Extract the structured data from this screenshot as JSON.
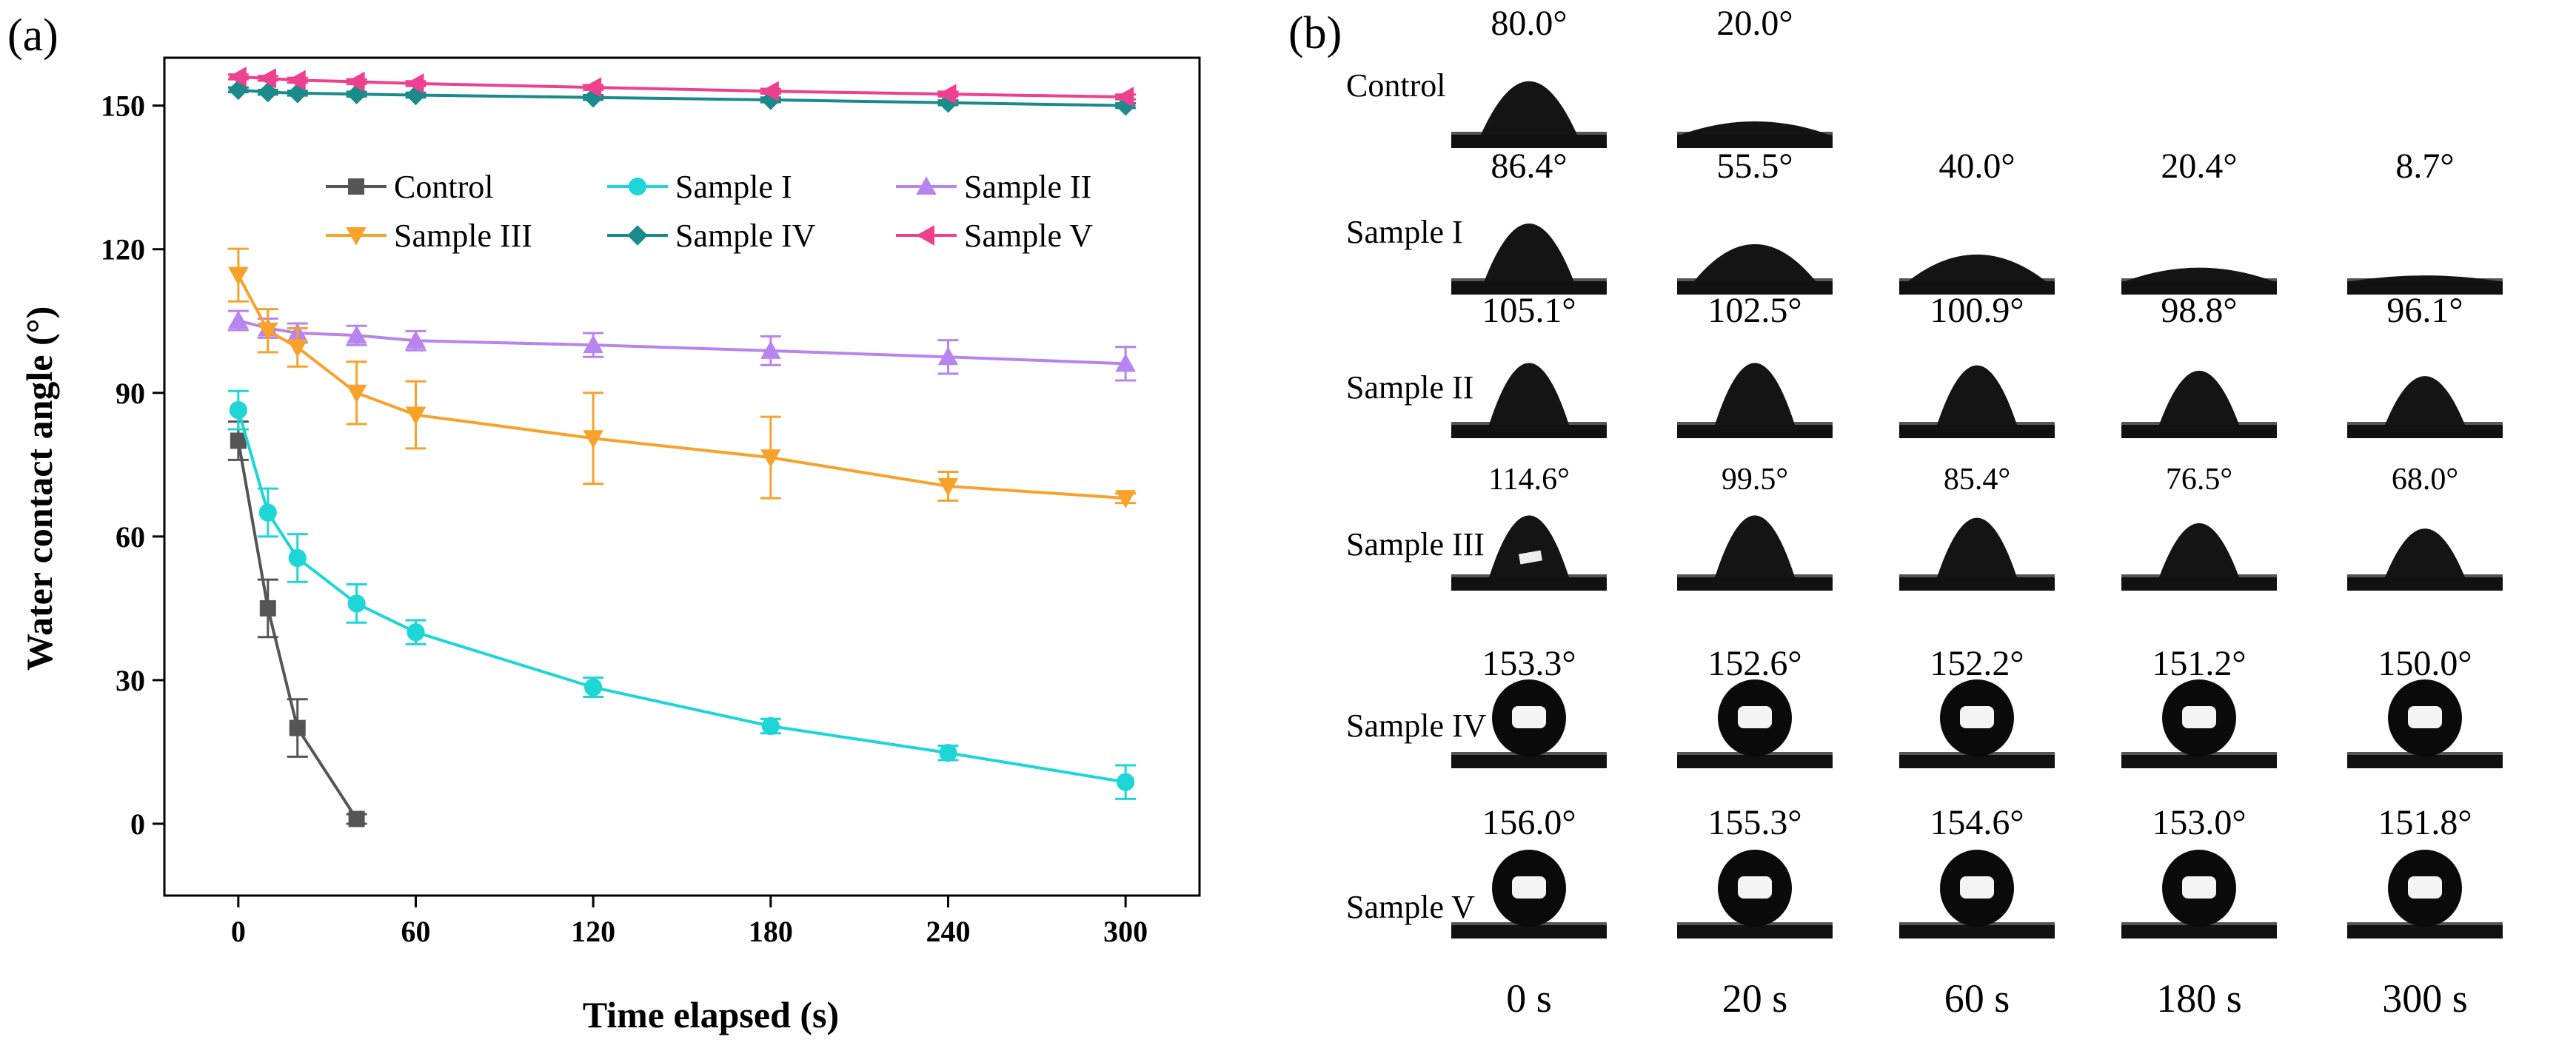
{
  "chart_data": {
    "type": "line",
    "panel_label": "(a)",
    "xlabel": "Time elapsed (s)",
    "ylabel": "Water contact angle (°)",
    "xlim": [
      -25,
      325
    ],
    "ylim": [
      -15,
      160
    ],
    "xticks": [
      0,
      60,
      120,
      180,
      240,
      300
    ],
    "yticks": [
      0,
      30,
      60,
      90,
      120,
      150
    ],
    "legend_position": "upper-right",
    "series": [
      {
        "name": "Control",
        "color": "#555555",
        "marker": "square",
        "x": [
          0,
          10,
          20,
          40
        ],
        "y": [
          80,
          45,
          20,
          1
        ],
        "err": [
          4,
          6,
          6,
          1
        ]
      },
      {
        "name": "Sample I",
        "color": "#1ed6d6",
        "marker": "circle",
        "x": [
          0,
          10,
          20,
          40,
          60,
          120,
          180,
          240,
          300
        ],
        "y": [
          86.4,
          65,
          55.5,
          46,
          40,
          28.5,
          20.4,
          14.8,
          8.7
        ],
        "err": [
          4,
          5,
          5,
          4,
          2.5,
          2,
          1.5,
          1.5,
          3.5
        ]
      },
      {
        "name": "Sample II",
        "color": "#b784f0",
        "marker": "triangle-up",
        "x": [
          0,
          10,
          20,
          40,
          60,
          120,
          180,
          240,
          300
        ],
        "y": [
          105.1,
          103.5,
          102.5,
          102,
          100.9,
          100,
          98.8,
          97.5,
          96.1
        ],
        "err": [
          2,
          2,
          2,
          2,
          2,
          2.5,
          3,
          3.5,
          3.5
        ]
      },
      {
        "name": "Sample III",
        "color": "#f7a22b",
        "marker": "triangle-down",
        "x": [
          0,
          10,
          20,
          40,
          60,
          120,
          180,
          240,
          300
        ],
        "y": [
          114.6,
          103,
          99.5,
          90,
          85.4,
          80.5,
          76.5,
          70.5,
          68
        ],
        "err": [
          5.5,
          4.5,
          4,
          6.5,
          7,
          9.5,
          8.5,
          3,
          1
        ]
      },
      {
        "name": "Sample IV",
        "color": "#1a8a8a",
        "marker": "diamond",
        "x": [
          0,
          10,
          20,
          40,
          60,
          120,
          180,
          240,
          300
        ],
        "y": [
          153.3,
          152.8,
          152.6,
          152.4,
          152.2,
          151.7,
          151.2,
          150.6,
          150
        ],
        "err": [
          0.5,
          0.5,
          0.5,
          0.5,
          0.5,
          0.5,
          0.5,
          0.5,
          0.5
        ]
      },
      {
        "name": "Sample V",
        "color": "#ef3f8f",
        "marker": "triangle-left",
        "x": [
          0,
          10,
          20,
          40,
          60,
          120,
          180,
          240,
          300
        ],
        "y": [
          156,
          155.7,
          155.3,
          155,
          154.6,
          153.8,
          153,
          152.4,
          151.8
        ],
        "err": [
          0.5,
          0.5,
          0.5,
          0.5,
          0.5,
          0.5,
          0.5,
          0.5,
          0.5
        ]
      }
    ]
  },
  "panel_b": {
    "panel_label": "(b)",
    "rows": [
      {
        "label": "Control",
        "type": "hydrophilic",
        "angles": [
          "80.0°",
          "20.0°"
        ]
      },
      {
        "label": "Sample I",
        "type": "hydrophilic",
        "angles": [
          "86.4°",
          "55.5°",
          "40.0°",
          "20.4°",
          "8.7°"
        ]
      },
      {
        "label": "Sample II",
        "type": "hydrophobic",
        "angles": [
          "105.1°",
          "102.5°",
          "100.9°",
          "98.8°",
          "96.1°"
        ]
      },
      {
        "label": "Sample III",
        "type": "hydrophobic",
        "angles": [
          "114.6°",
          "99.5°",
          "85.4°",
          "76.5°",
          "68.0°"
        ]
      },
      {
        "label": "Sample IV",
        "type": "superhydrophobic",
        "angles": [
          "153.3°",
          "152.6°",
          "152.2°",
          "151.2°",
          "150.0°"
        ]
      },
      {
        "label": "Sample V",
        "type": "superhydrophobic",
        "angles": [
          "156.0°",
          "155.3°",
          "154.6°",
          "153.0°",
          "151.8°"
        ]
      }
    ],
    "times": [
      "0 s",
      "20 s",
      "60 s",
      "180 s",
      "300 s"
    ]
  }
}
